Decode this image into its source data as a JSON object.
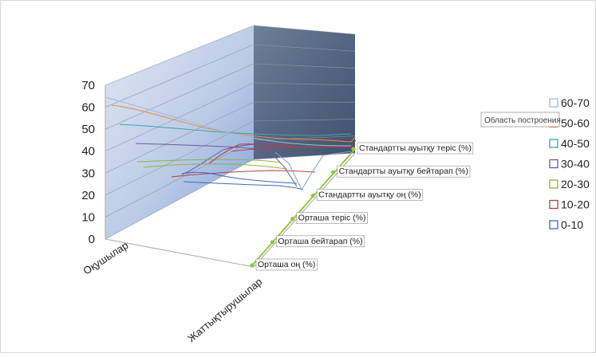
{
  "chart_data": {
    "type": "surface",
    "title": "",
    "z_axis": {
      "ticks": [
        "0",
        "10",
        "20",
        "30",
        "40",
        "50",
        "60",
        "70"
      ],
      "range": [
        0,
        70
      ]
    },
    "series_axis": {
      "label": "",
      "categories": [
        "Оқушылар",
        "Жаттықтырушылар"
      ]
    },
    "depth_axis": {
      "label": "",
      "categories": [
        "Орташа оң (%)",
        "Орташа бейтарап (%)",
        "Орташа теріс (%)",
        "Стандартты ауытқу оң (%)",
        "Стандартты ауытқу бейтарап (%)",
        "Стандартты ауытқу теріс (%)"
      ]
    },
    "legend": {
      "position": "right",
      "items": [
        {
          "label": "60-70",
          "color": "#9dbbdc"
        },
        {
          "label": "50-60",
          "color": "#e4903a"
        },
        {
          "label": "40-50",
          "color": "#3ea2ad"
        },
        {
          "label": "30-40",
          "color": "#6b5a9b"
        },
        {
          "label": "20-30",
          "color": "#8fb33b"
        },
        {
          "label": "10-20",
          "color": "#b84040"
        },
        {
          "label": "0-10",
          "color": "#3b6cb8"
        }
      ]
    },
    "tooltip": "Область построения",
    "colors": {
      "depth_axis_line": "#92c83e",
      "back_wall_dark": "#4a5a74",
      "back_wall_light": "#a9bcd8",
      "grid": "#8a8a8a"
    }
  }
}
